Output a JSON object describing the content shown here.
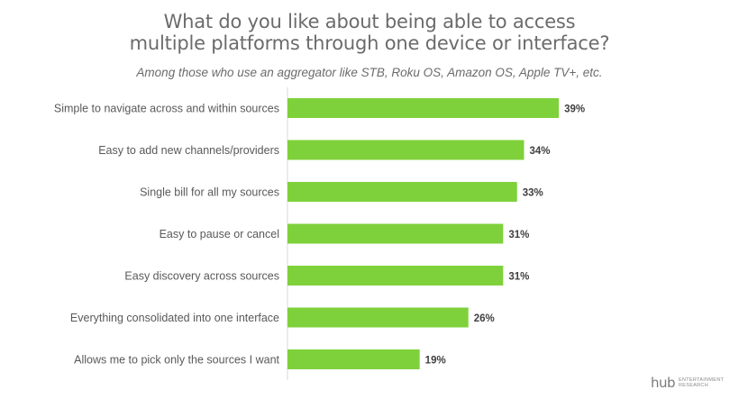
{
  "chart_data": {
    "type": "bar",
    "orientation": "horizontal",
    "title_line1": "What do you like about being able to access",
    "title_line2": "multiple platforms through one device or interface?",
    "subtitle": "Among those who use an aggregator like  STB, Roku OS, Amazon OS, Apple TV+, etc.",
    "categories": [
      "Simple to navigate across and within sources",
      "Easy to add new channels/providers",
      "Single bill for all my sources",
      "Easy to pause or cancel",
      "Easy discovery across sources",
      "Everything consolidated into one interface",
      "Allows me to pick only the sources I want"
    ],
    "values": [
      39,
      34,
      33,
      31,
      31,
      26,
      19
    ],
    "value_labels": [
      "39%",
      "34%",
      "33%",
      "31%",
      "31%",
      "26%",
      "19%"
    ],
    "unit": "%",
    "xlim": [
      0,
      40
    ],
    "grid": false,
    "bar_color": "#7fd13b"
  },
  "logo": {
    "mark": "hub",
    "line1": "ENTERTAINMENT",
    "line2": "RESEARCH"
  }
}
